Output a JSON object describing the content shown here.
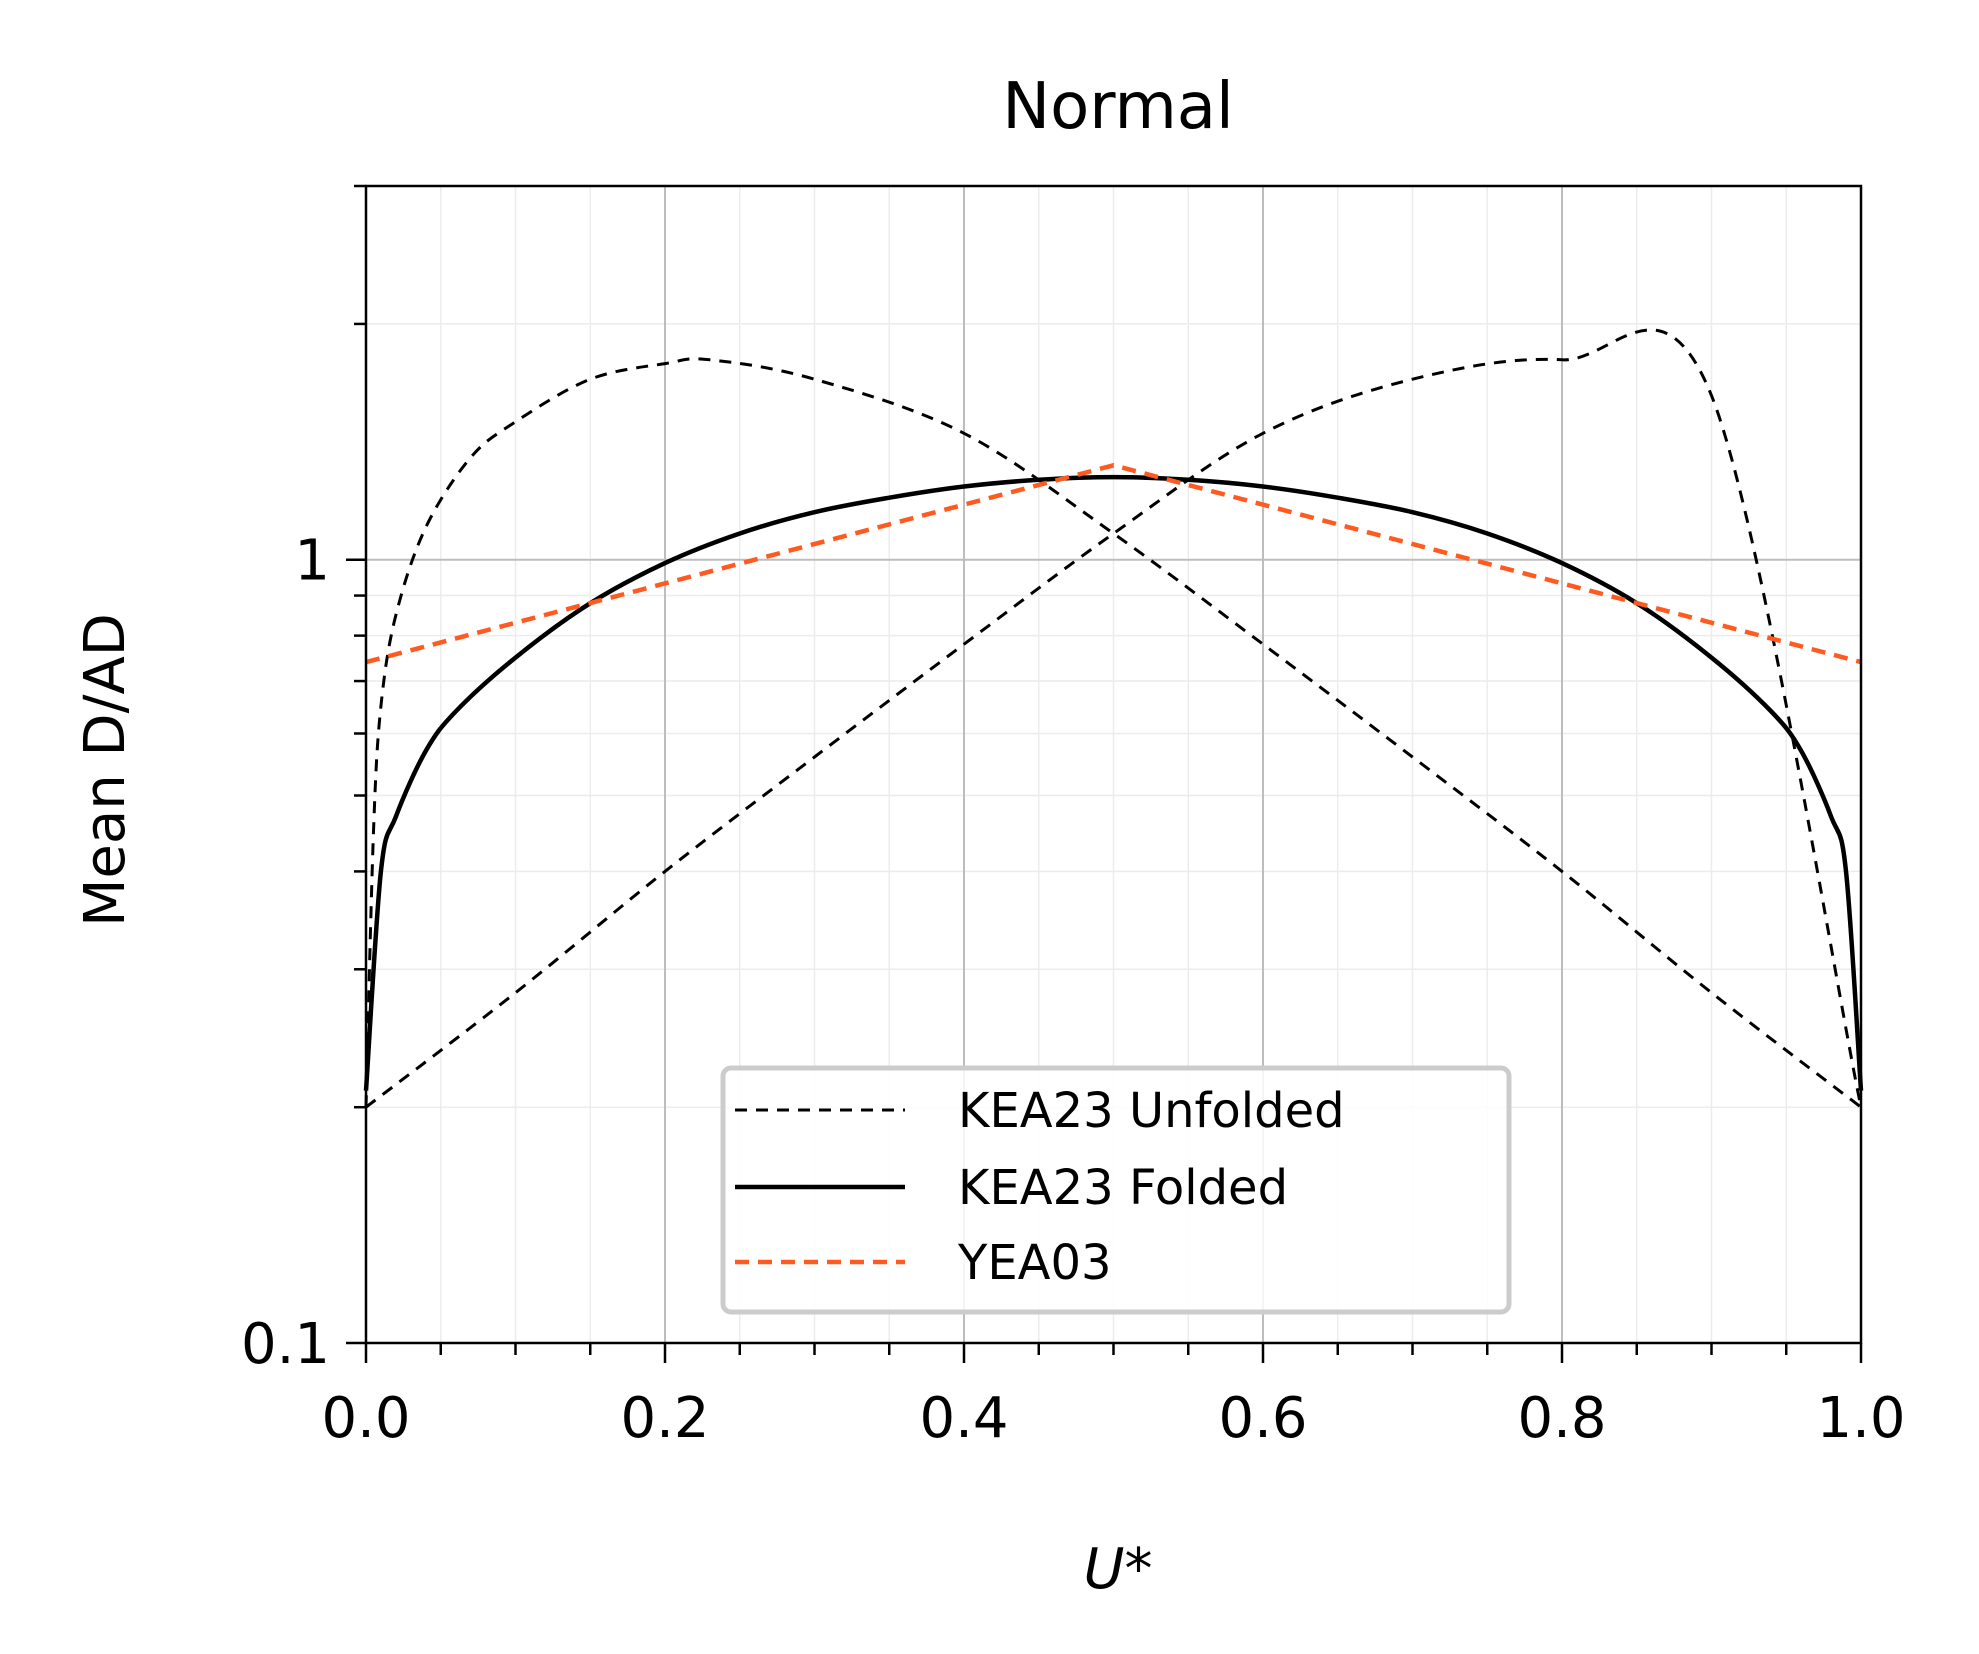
{
  "chart_data": {
    "type": "line",
    "title": "Normal",
    "xlabel": "U*",
    "ylabel": "Mean D/AD",
    "xlim": [
      0.0,
      1.0
    ],
    "ylim": [
      0.1,
      3.0
    ],
    "y_scale": "log",
    "x_ticks": [
      "0.0",
      "0.2",
      "0.4",
      "0.6",
      "0.8",
      "1.0"
    ],
    "y_ticks": [
      "0.1",
      "1"
    ],
    "grid": true,
    "legend_position": "lower-center",
    "series": [
      {
        "name": "KEA23 Unfolded",
        "style": "dashed",
        "color": "#000000",
        "x": [
          0.0,
          0.1,
          0.2,
          0.3,
          0.4,
          0.5,
          0.6,
          0.7,
          0.8,
          0.9,
          1.0
        ],
        "y": [
          0.2,
          0.28,
          0.4,
          0.56,
          0.78,
          1.08,
          1.45,
          1.7,
          1.8,
          1.62,
          0.2
        ]
      },
      {
        "name": "",
        "style": "dashed",
        "color": "#000000",
        "x": [
          0.0,
          0.005,
          0.01,
          0.02,
          0.04,
          0.07,
          0.1,
          0.15,
          0.2,
          0.23,
          0.3,
          0.4,
          0.5,
          0.6,
          0.7,
          0.8,
          0.9,
          1.0
        ],
        "y": [
          0.2,
          0.45,
          0.65,
          0.85,
          1.1,
          1.35,
          1.5,
          1.7,
          1.78,
          1.8,
          1.7,
          1.45,
          1.08,
          0.78,
          0.56,
          0.4,
          0.28,
          0.2
        ]
      },
      {
        "name": "KEA23 Folded",
        "style": "solid",
        "color": "#000000",
        "x": [
          0.0,
          0.01,
          0.02,
          0.04,
          0.06,
          0.1,
          0.15,
          0.2,
          0.25,
          0.3,
          0.35,
          0.4,
          0.45,
          0.5,
          0.55,
          0.6,
          0.65,
          0.7,
          0.75,
          0.8,
          0.85,
          0.9,
          0.94,
          0.96,
          0.98,
          0.99,
          1.0
        ],
        "y": [
          0.21,
          0.4,
          0.47,
          0.57,
          0.64,
          0.75,
          0.88,
          0.99,
          1.08,
          1.15,
          1.2,
          1.24,
          1.265,
          1.275,
          1.265,
          1.24,
          1.2,
          1.15,
          1.08,
          0.99,
          0.88,
          0.75,
          0.64,
          0.57,
          0.47,
          0.4,
          0.21
        ]
      },
      {
        "name": "YEA03",
        "style": "dashed",
        "color": "#ff5a1f",
        "x": [
          0.0,
          0.5,
          1.0
        ],
        "y": [
          0.74,
          1.32,
          0.74
        ]
      }
    ]
  }
}
